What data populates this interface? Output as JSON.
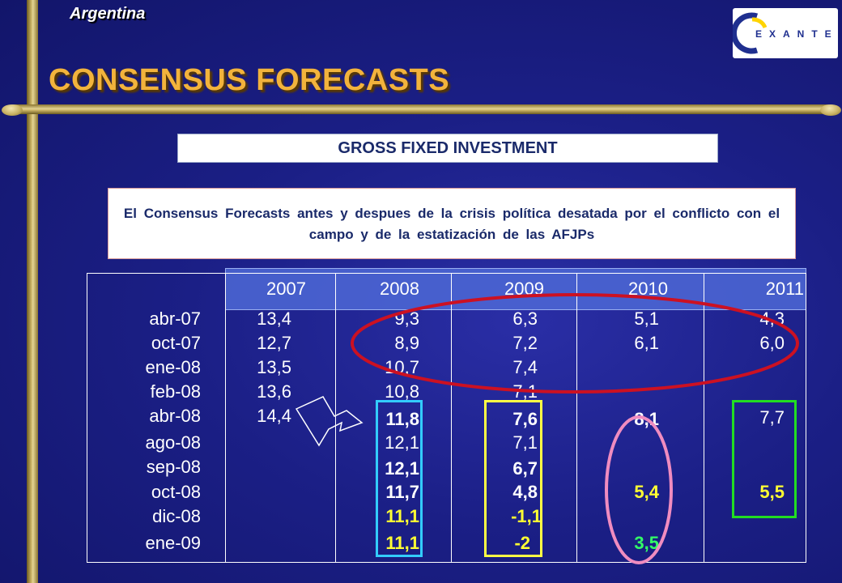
{
  "header": {
    "country": "Argentina",
    "title": "CONSENSUS FORECASTS",
    "logo_text": "EXANTE"
  },
  "subtitle": "GROSS FIXED INVESTMENT",
  "note": "El Consensus Forecasts antes y despues de la crisis política desatada por el conflicto con el campo y de la estatización de las AFJPs",
  "colors": {
    "background": "#1b1f86",
    "title": "#f2b33c",
    "highlight_yellow": "#ffff33",
    "highlight_green": "#33ff66",
    "circle_red": "#cc1122",
    "oval_pink": "#f08cc0",
    "box_cyan": "#33ccff",
    "box_yellow": "#ffff44",
    "box_green": "#22dd22"
  },
  "table": {
    "columns": [
      "2007",
      "2008",
      "2009",
      "2010",
      "2011"
    ],
    "rows": [
      {
        "label": "abr-07",
        "values": [
          "13,4",
          "9,3",
          "6,3",
          "5,1",
          "4,3"
        ]
      },
      {
        "label": "oct-07",
        "values": [
          "12,7",
          "8,9",
          "7,2",
          "6,1",
          "6,0"
        ]
      },
      {
        "label": "ene-08",
        "values": [
          "13,5",
          "10,7",
          "7,4",
          "",
          ""
        ]
      },
      {
        "label": "feb-08",
        "values": [
          "13,6",
          "10,8",
          "7,1",
          "",
          ""
        ]
      },
      {
        "label": "abr-08",
        "values": [
          "14,4",
          "11,8",
          "7,6",
          "8,1",
          "7,7"
        ]
      },
      {
        "label": "ago-08",
        "values": [
          "",
          "12,1",
          "7,1",
          "",
          ""
        ]
      },
      {
        "label": "sep-08",
        "values": [
          "",
          "12,1",
          "6,7",
          "",
          ""
        ]
      },
      {
        "label": "oct-08",
        "values": [
          "",
          "11,7",
          "4,8",
          "5,4",
          "5,5"
        ]
      },
      {
        "label": "dic-08",
        "values": [
          "",
          "11,1",
          "-1,1",
          "",
          ""
        ]
      },
      {
        "label": "ene-09",
        "values": [
          "",
          "11,1",
          "-2",
          "3,5",
          ""
        ]
      }
    ]
  }
}
